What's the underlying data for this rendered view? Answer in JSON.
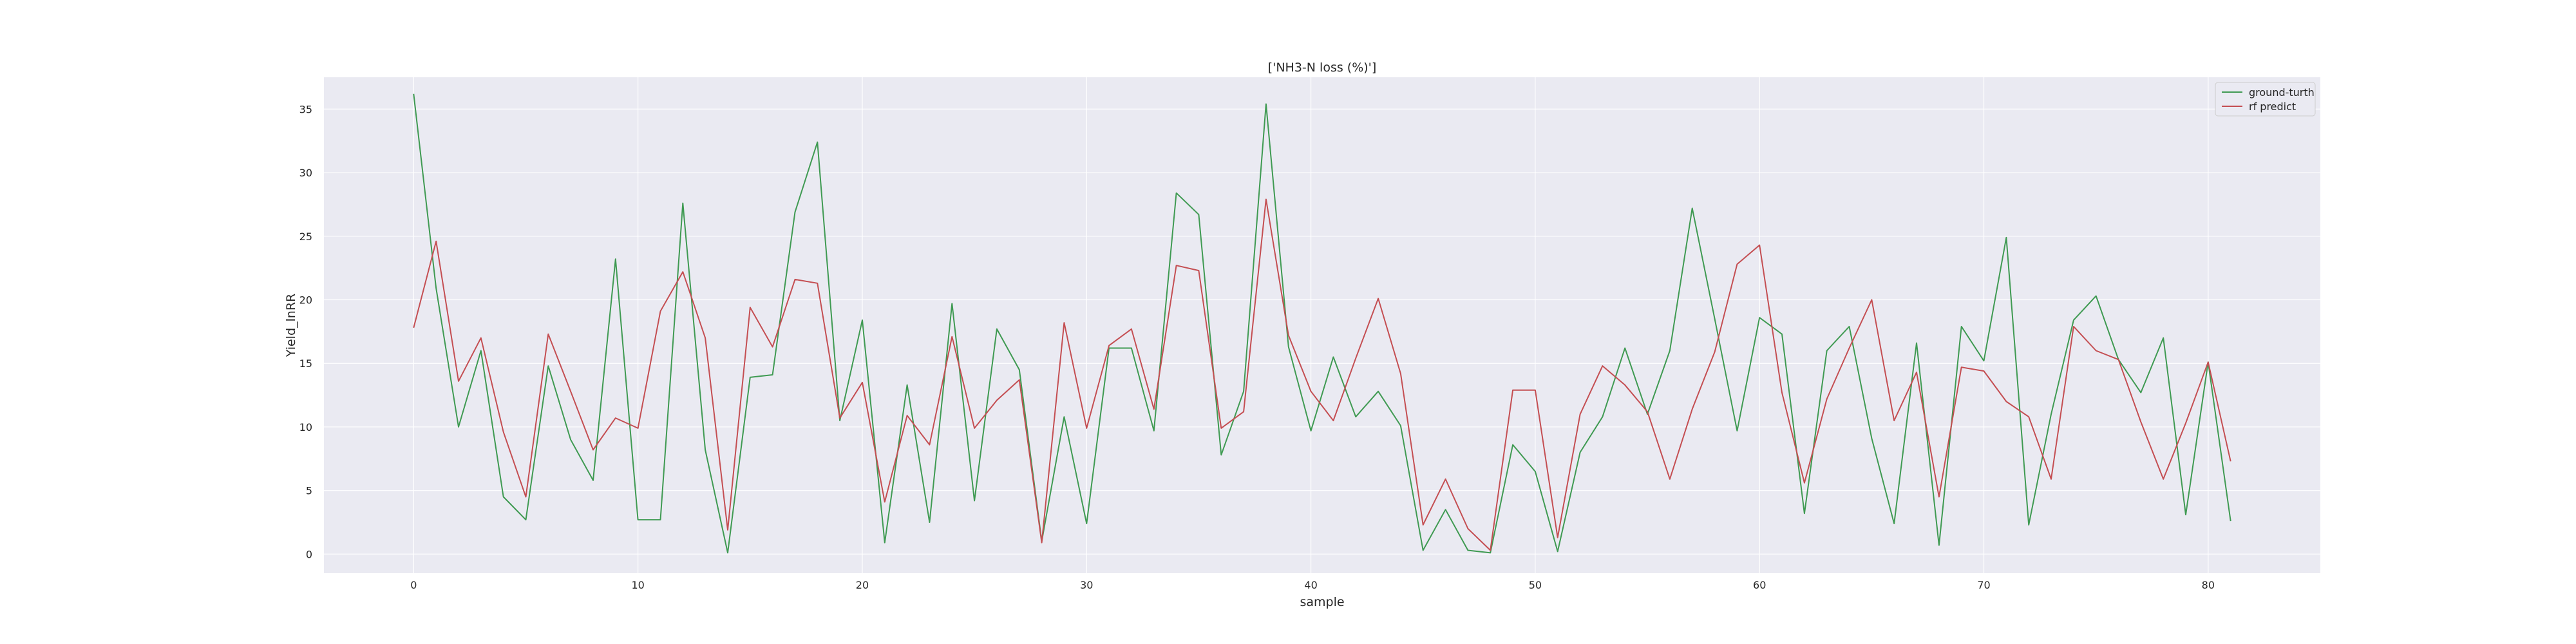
{
  "chart_data": {
    "type": "line",
    "title": "['NH3-N loss (%)']",
    "xlabel": "sample",
    "ylabel": "Yield_lnRR",
    "xlim": [
      -4,
      85
    ],
    "ylim": [
      -1.5,
      37.5
    ],
    "xticks": [
      0,
      10,
      20,
      30,
      40,
      50,
      60,
      70,
      80
    ],
    "yticks": [
      0,
      5,
      10,
      15,
      20,
      25,
      30,
      35
    ],
    "grid": true,
    "legend_position": "top-right",
    "colors": {
      "background": "#eaeaf2",
      "grid": "#ffffff"
    },
    "series": [
      {
        "name": "ground-turth",
        "color": "#3f9a52",
        "values": [
          36.2,
          20.9,
          10.0,
          16.0,
          4.5,
          2.7,
          14.8,
          9.0,
          5.8,
          23.2,
          2.7,
          2.7,
          27.6,
          8.2,
          0.1,
          13.9,
          14.1,
          26.9,
          32.4,
          10.5,
          18.4,
          0.9,
          13.3,
          2.5,
          19.7,
          4.2,
          17.7,
          14.5,
          1.0,
          10.8,
          2.4,
          16.2,
          16.2,
          9.7,
          28.4,
          26.7,
          7.8,
          12.8,
          35.4,
          16.3,
          9.7,
          15.5,
          10.8,
          12.8,
          10.1,
          0.3,
          3.5,
          0.3,
          0.1,
          8.6,
          6.5,
          0.2,
          8.0,
          10.8,
          16.2,
          11.0,
          16.0,
          27.2,
          18.5,
          9.7,
          18.6,
          17.3,
          3.2,
          16.0,
          17.9,
          9.1,
          2.4,
          16.6,
          0.7,
          17.9,
          15.2,
          24.9,
          2.3,
          11.0,
          18.4,
          20.3,
          15.3,
          12.7,
          17.0,
          3.1,
          15.1,
          2.6
        ]
      },
      {
        "name": "rf predict",
        "color": "#c44e52",
        "values": [
          17.8,
          24.6,
          13.6,
          17.0,
          9.6,
          4.5,
          17.3,
          12.8,
          8.2,
          10.7,
          9.9,
          19.1,
          22.2,
          17.0,
          1.9,
          19.4,
          16.3,
          21.6,
          21.3,
          10.7,
          13.5,
          4.1,
          10.9,
          8.6,
          17.1,
          9.9,
          12.1,
          13.7,
          0.9,
          18.2,
          9.9,
          16.4,
          17.7,
          11.4,
          22.7,
          22.3,
          9.9,
          11.2,
          27.9,
          17.2,
          12.8,
          10.5,
          15.4,
          20.1,
          14.2,
          2.3,
          5.9,
          2.0,
          0.3,
          12.9,
          12.9,
          1.3,
          11.0,
          14.8,
          13.3,
          11.2,
          5.9,
          11.4,
          15.9,
          22.8,
          24.3,
          12.7,
          5.6,
          12.2,
          16.2,
          20.0,
          10.5,
          14.3,
          4.5,
          14.7,
          14.4,
          12.0,
          10.8,
          5.9,
          17.9,
          16.0,
          15.3,
          10.4,
          5.9,
          10.3,
          15.1,
          7.3
        ]
      }
    ]
  }
}
